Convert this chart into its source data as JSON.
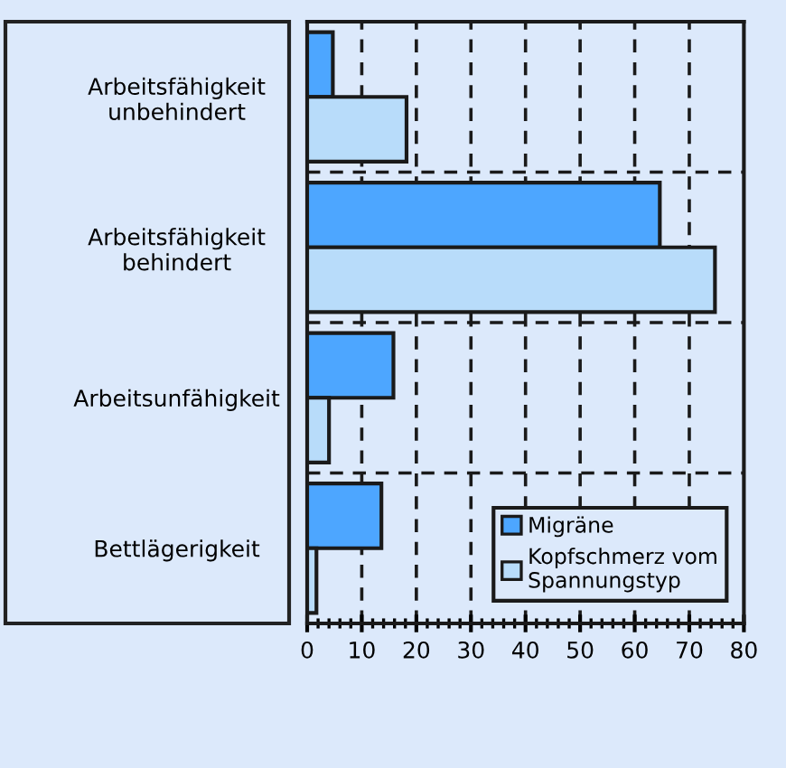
{
  "chart_data": {
    "type": "bar",
    "orientation": "horizontal",
    "categories": [
      "Arbeitsfähigkeit\nunbehindert",
      "Arbeitsfähigkeit\nbehindert",
      "Arbeitsunfähigkeit",
      "Bettlägerigkeit"
    ],
    "series": [
      {
        "name": "Migräne",
        "color": "#4da6ff",
        "values": [
          4.7,
          64.6,
          15.8,
          13.6
        ]
      },
      {
        "name": "Kopfschmerz vom\nSpannungstyp",
        "color": "#b8dcfa",
        "values": [
          18.2,
          74.7,
          4.0,
          1.7
        ]
      }
    ],
    "xlim": [
      0,
      80
    ],
    "xticks": [
      0,
      10,
      20,
      30,
      40,
      50,
      60,
      70,
      80
    ],
    "grid": true,
    "legend": "bottom right"
  }
}
